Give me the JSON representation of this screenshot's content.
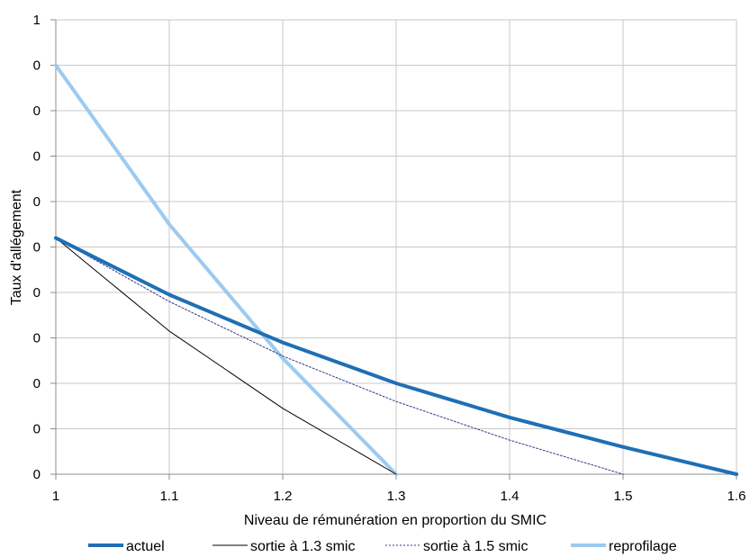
{
  "chart_data": {
    "type": "line",
    "title": "",
    "xlabel": "Niveau de rémunération en proportion du SMIC",
    "ylabel": "Taux d'allégement",
    "xlim": [
      1,
      1.6
    ],
    "ylim": [
      0,
      1
    ],
    "x_ticks": [
      "1",
      "1.1",
      "1.2",
      "1.3",
      "1.4",
      "1.5",
      "1.6"
    ],
    "y_ticks": [
      "0",
      "0",
      "0",
      "0",
      "0",
      "0",
      "0",
      "0",
      "0",
      "0",
      "1"
    ],
    "grid": true,
    "legend_position": "bottom",
    "series": [
      {
        "name": "actuel",
        "color": "#1f6fb4",
        "style": "solid-thick",
        "points": [
          [
            1.0,
            0.52
          ],
          [
            1.1,
            0.395
          ],
          [
            1.2,
            0.29
          ],
          [
            1.3,
            0.2
          ],
          [
            1.4,
            0.125
          ],
          [
            1.5,
            0.06
          ],
          [
            1.6,
            0.0
          ]
        ]
      },
      {
        "name": "sortie à 1.3 smic",
        "color": "#000000",
        "style": "solid-thin",
        "points": [
          [
            1.0,
            0.52
          ],
          [
            1.1,
            0.315
          ],
          [
            1.2,
            0.145
          ],
          [
            1.3,
            0.0
          ]
        ]
      },
      {
        "name": "sortie à 1.5 smic",
        "color": "#2e3a8c",
        "style": "dotted-thin",
        "points": [
          [
            1.0,
            0.52
          ],
          [
            1.1,
            0.38
          ],
          [
            1.2,
            0.26
          ],
          [
            1.3,
            0.16
          ],
          [
            1.4,
            0.075
          ],
          [
            1.5,
            0.0
          ]
        ]
      },
      {
        "name": "reprofilage",
        "color": "#9ccaf0",
        "style": "solid-thick",
        "points": [
          [
            1.0,
            0.9
          ],
          [
            1.1,
            0.55
          ],
          [
            1.2,
            0.255
          ],
          [
            1.3,
            0.0
          ]
        ]
      }
    ]
  }
}
